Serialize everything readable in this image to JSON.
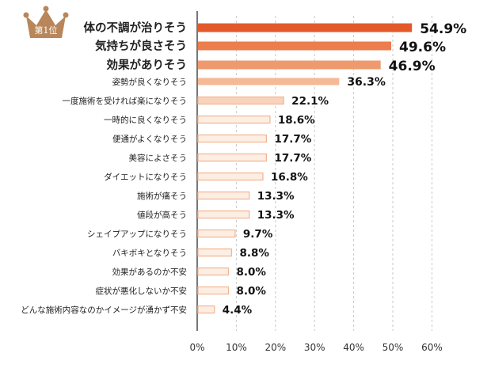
{
  "badge": {
    "text": "第1位",
    "color": "#b8865a"
  },
  "chart_data": {
    "type": "bar",
    "orientation": "horizontal",
    "categories": [
      "体の不調が治りそう",
      "気持ちが良さそう",
      "効果がありそう",
      "姿勢が良くなりそう",
      "一度施術を受ければ楽になりそう",
      "一時的に良くなりそう",
      "便通がよくなりそう",
      "美容によさそう",
      "ダイエットになりそう",
      "施術が痛そう",
      "値段が高そう",
      "シェイプアップになりそう",
      "バキボキとなりそう",
      "効果があるのか不安",
      "症状が悪化しないか不安",
      "どんな施術内容なのかイメージが湧かず不安"
    ],
    "values": [
      54.9,
      49.6,
      46.9,
      36.3,
      22.1,
      18.6,
      17.7,
      17.7,
      16.8,
      13.3,
      13.3,
      9.7,
      8.8,
      8.0,
      8.0,
      4.4
    ],
    "value_labels": [
      "54.9%",
      "49.6%",
      "46.9%",
      "36.3%",
      "22.1%",
      "18.6%",
      "17.7%",
      "17.7%",
      "16.8%",
      "13.3%",
      "13.3%",
      "9.7%",
      "8.8%",
      "8.0%",
      "8.0%",
      "4.4%"
    ],
    "xlim": [
      0,
      60
    ],
    "xticks": [
      "0%",
      "10%",
      "20%",
      "30%",
      "40%",
      "50%",
      "60%"
    ],
    "grid": true,
    "colors": [
      "#e4592a",
      "#ec7d4c",
      "#ef9a6e",
      "#f5b996",
      "#f9d4bd",
      "#fdeee4"
    ],
    "bar_border": "#f2b48f"
  }
}
